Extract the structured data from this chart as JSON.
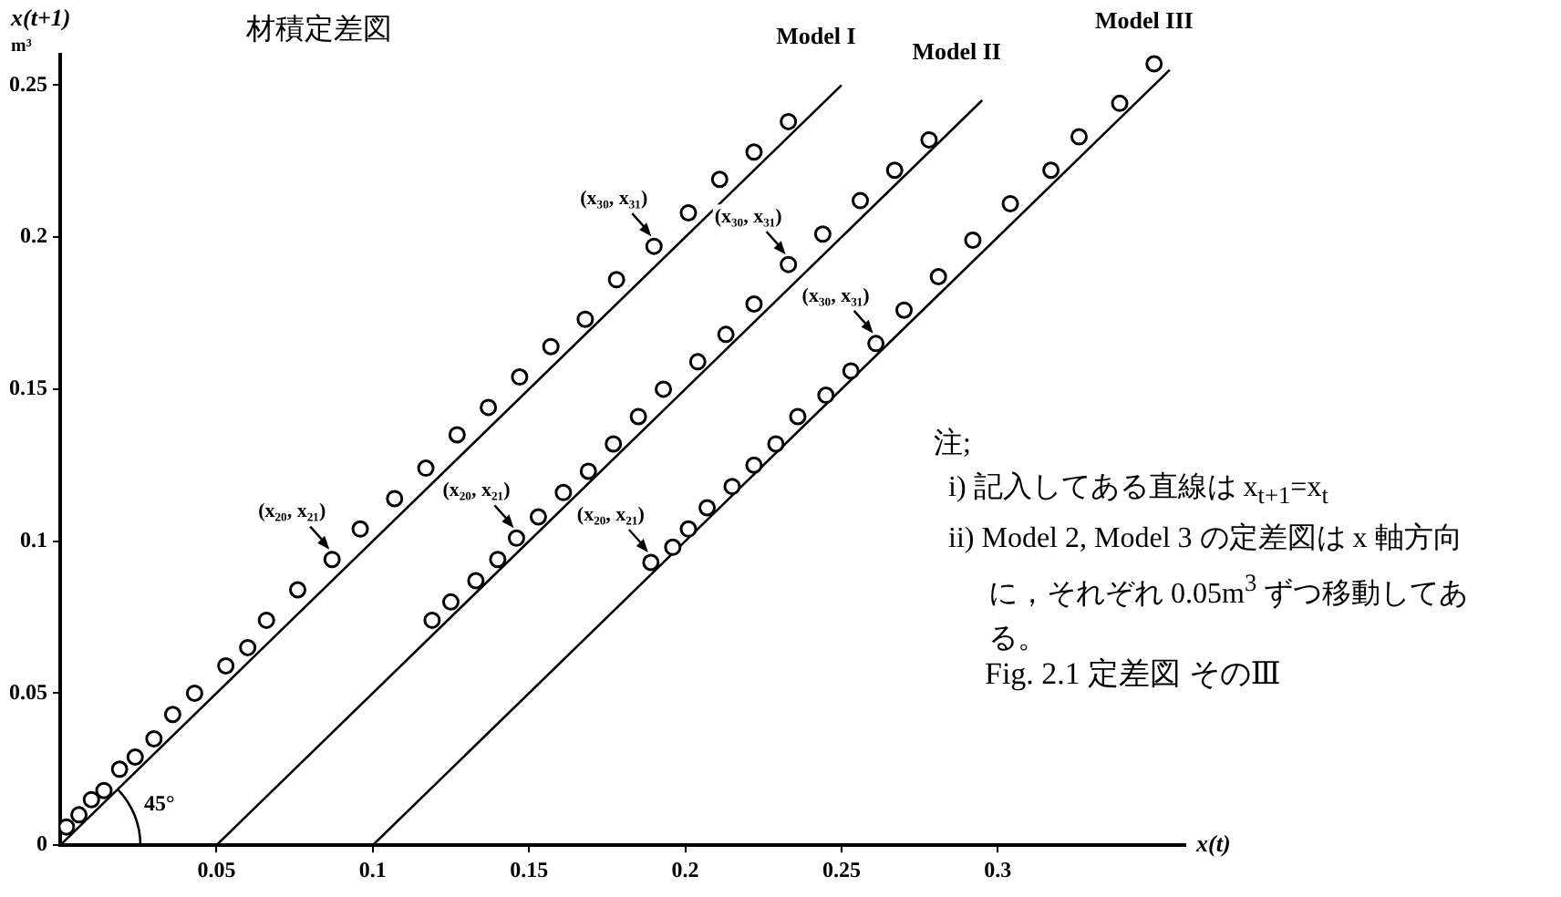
{
  "chart_data": {
    "type": "scatter",
    "title": "材積定差図",
    "xlabel": "x(t)",
    "ylabel": "x(t+1)\nm³",
    "xlim": [
      0,
      0.36
    ],
    "ylim": [
      0,
      0.26
    ],
    "xticks": [
      0.05,
      0.1,
      0.15,
      0.2,
      0.25,
      0.3
    ],
    "yticks": [
      0,
      0.05,
      0.1,
      0.15,
      0.2,
      0.25
    ],
    "grid": false,
    "legend": false,
    "marker": "circle",
    "series": [
      {
        "type": "scatter",
        "color": "#000000",
        "x": [
          0.002,
          0.006,
          0.01,
          0.014,
          0.019,
          0.024,
          0.03,
          0.036,
          0.043,
          0.053,
          0.06,
          0.066,
          0.076,
          0.087,
          0.096,
          0.107,
          0.117,
          0.127,
          0.137,
          0.147,
          0.157,
          0.168,
          0.178,
          0.19,
          0.201,
          0.211,
          0.222,
          0.233
        ],
        "values": [
          0.006,
          0.01,
          0.015,
          0.018,
          0.025,
          0.029,
          0.035,
          0.043,
          0.05,
          0.059,
          0.065,
          0.074,
          0.084,
          0.094,
          0.104,
          0.114,
          0.124,
          0.135,
          0.144,
          0.154,
          0.164,
          0.173,
          0.186,
          0.197,
          0.208,
          0.219,
          0.228,
          0.238
        ]
      },
      {
        "type": "scatter",
        "color": "#000000",
        "x": [
          0.119,
          0.125,
          0.133,
          0.14,
          0.146,
          0.153,
          0.161,
          0.169,
          0.177,
          0.185,
          0.193,
          0.204,
          0.213,
          0.222,
          0.233,
          0.244,
          0.256,
          0.267,
          0.278
        ],
        "values": [
          0.074,
          0.08,
          0.087,
          0.094,
          0.101,
          0.108,
          0.116,
          0.123,
          0.132,
          0.141,
          0.15,
          0.159,
          0.168,
          0.178,
          0.191,
          0.201,
          0.212,
          0.222,
          0.232
        ]
      },
      {
        "type": "scatter",
        "color": "#000000",
        "x": [
          0.189,
          0.196,
          0.201,
          0.207,
          0.215,
          0.222,
          0.229,
          0.236,
          0.245,
          0.253,
          0.261,
          0.27,
          0.281,
          0.292,
          0.304,
          0.317,
          0.326,
          0.339,
          0.35
        ],
        "values": [
          0.093,
          0.098,
          0.104,
          0.111,
          0.118,
          0.125,
          0.132,
          0.141,
          0.148,
          0.156,
          0.165,
          0.176,
          0.187,
          0.199,
          0.211,
          0.222,
          0.233,
          0.244,
          0.257
        ]
      },
      {
        "type": "line",
        "name": "Model I",
        "color": "#000000",
        "marker": "none",
        "x": [
          0,
          0.25
        ],
        "values": [
          0,
          0.25
        ]
      },
      {
        "type": "line",
        "name": "Model II",
        "color": "#000000",
        "marker": "none",
        "x": [
          0.05,
          0.295
        ],
        "values": [
          0,
          0.245
        ]
      },
      {
        "type": "line",
        "name": "Model III",
        "color": "#000000",
        "marker": "none",
        "x": [
          0.1,
          0.355
        ],
        "values": [
          0,
          0.255
        ]
      }
    ],
    "annotations": [
      "45°",
      "注;",
      "i) 記入してある直線は x$_{t+1}$=x$_{t}$",
      "ii) Model 2, Model 3 の定差図は x 軸方向に，それぞれ 0.05m$^{3}$ ずつ移動してある。",
      "Fig. 2.1 定差図 そのⅢ",
      {
        "text": "(x₂₀, x₂₁)",
        "x": 0.087,
        "y": 0.094
      },
      {
        "text": "(x₃₀, x₃₁)",
        "x": 0.19,
        "y": 0.197
      },
      {
        "text": "(x₂₀, x₂₁)",
        "x": 0.146,
        "y": 0.101
      },
      {
        "text": "(x₃₀, x₃₁)",
        "x": 0.233,
        "y": 0.191
      },
      {
        "text": "(x₂₀, x₂₁)",
        "x": 0.189,
        "y": 0.093
      },
      {
        "text": "(x₃₀, x₃₁)",
        "x": 0.261,
        "y": 0.165
      }
    ]
  }
}
